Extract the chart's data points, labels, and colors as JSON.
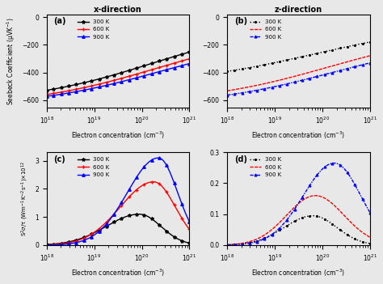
{
  "title_a": "x-direction",
  "title_b": "z-direction",
  "panel_labels": [
    "(a)",
    "(b)",
    "(c)",
    "(d)"
  ],
  "legend_temps": [
    "300 K",
    "600 K",
    "900 K"
  ],
  "colors": [
    "black",
    "red",
    "blue"
  ],
  "xlabel": "Electron concentration (cm$^{-3}$)",
  "ylabel_ab": "Seebeck Coefficient (μVK$^{-1}$)",
  "ylabel_cd": "S$^2σ$/τ (Wm$^{-1}$K$^{-2}$s$^{-1}$)×10$^{12}$",
  "ylim_ab": [
    -650,
    20
  ],
  "ylim_c": [
    0,
    3.3
  ],
  "ylim_d": [
    0,
    0.3
  ],
  "xlim": [
    1e+18,
    1e+21
  ],
  "yticks_ab": [
    0,
    -200,
    -400,
    -600
  ],
  "yticks_c": [
    0,
    1,
    2,
    3
  ],
  "yticks_d": [
    0.0,
    0.1,
    0.2,
    0.3
  ],
  "bg_color": "#e8e8e8"
}
